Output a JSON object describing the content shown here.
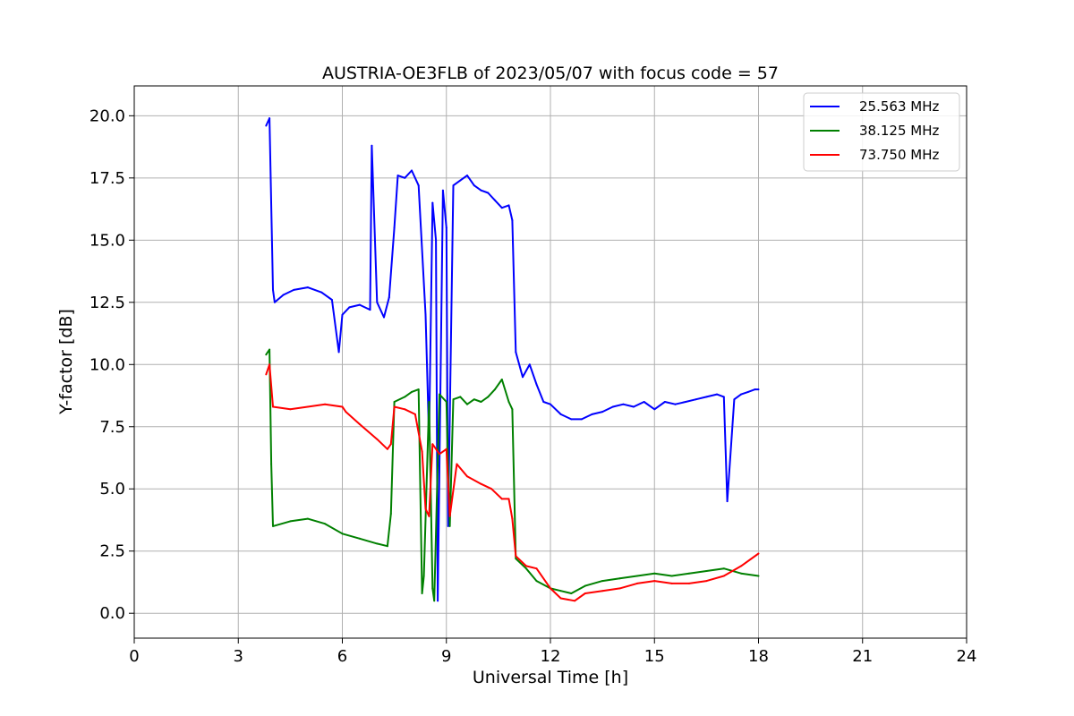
{
  "chart_data": {
    "type": "line",
    "title": "AUSTRIA-OE3FLB of 2023/05/07 with focus code = 57",
    "xlabel": "Universal Time [h]",
    "ylabel": "Y-factor [dB]",
    "xlim": [
      0,
      24
    ],
    "ylim": [
      -1,
      21.2
    ],
    "xticks": [
      0,
      3,
      6,
      9,
      12,
      15,
      18,
      21,
      24
    ],
    "xtick_labels": [
      "0",
      "3",
      "6",
      "9",
      "12",
      "15",
      "18",
      "21",
      "24"
    ],
    "yticks": [
      0,
      2.5,
      5,
      7.5,
      10,
      12.5,
      15,
      17.5,
      20
    ],
    "ytick_labels": [
      "0.0",
      "2.5",
      "5.0",
      "7.5",
      "10.0",
      "12.5",
      "15.0",
      "17.5",
      "20.0"
    ],
    "grid": true,
    "legend_position": "top-right",
    "series": [
      {
        "name": "25.563 MHz",
        "color": "#0000ff",
        "x": [
          3.8,
          3.9,
          4.0,
          4.05,
          4.3,
          4.6,
          5.0,
          5.4,
          5.7,
          5.9,
          6.0,
          6.2,
          6.5,
          6.8,
          6.85,
          7.0,
          7.2,
          7.35,
          7.5,
          7.6,
          7.8,
          8.0,
          8.2,
          8.4,
          8.5,
          8.6,
          8.7,
          8.75,
          8.9,
          9.0,
          9.05,
          9.2,
          9.4,
          9.6,
          9.8,
          10.0,
          10.2,
          10.4,
          10.6,
          10.8,
          10.9,
          11.0,
          11.2,
          11.4,
          11.6,
          11.8,
          12.0,
          12.3,
          12.6,
          12.9,
          13.2,
          13.5,
          13.8,
          14.1,
          14.4,
          14.7,
          15.0,
          15.3,
          15.6,
          15.9,
          16.2,
          16.5,
          16.8,
          17.0,
          17.1,
          17.3,
          17.5,
          17.7,
          17.9,
          18.0
        ],
        "values": [
          19.6,
          19.9,
          13.0,
          12.5,
          12.8,
          13.0,
          13.1,
          12.9,
          12.6,
          10.5,
          12.0,
          12.3,
          12.4,
          12.2,
          18.8,
          12.5,
          11.9,
          12.7,
          15.5,
          17.6,
          17.5,
          17.8,
          17.2,
          12.0,
          7.0,
          16.5,
          15.0,
          0.5,
          17.0,
          15.5,
          3.5,
          17.2,
          17.4,
          17.6,
          17.2,
          17.0,
          16.9,
          16.6,
          16.3,
          16.4,
          15.8,
          10.5,
          9.5,
          10.0,
          9.2,
          8.5,
          8.4,
          8.0,
          7.8,
          7.8,
          8.0,
          8.1,
          8.3,
          8.4,
          8.3,
          8.5,
          8.2,
          8.5,
          8.4,
          8.5,
          8.6,
          8.7,
          8.8,
          8.7,
          4.5,
          8.6,
          8.8,
          8.9,
          9.0,
          9.0
        ]
      },
      {
        "name": "38.125 MHz",
        "color": "#008000",
        "x": [
          3.8,
          3.9,
          3.95,
          4.0,
          4.5,
          5.0,
          5.5,
          6.0,
          6.5,
          7.0,
          7.3,
          7.4,
          7.5,
          7.8,
          8.0,
          8.2,
          8.3,
          8.35,
          8.5,
          8.6,
          8.65,
          8.8,
          9.0,
          9.1,
          9.2,
          9.4,
          9.6,
          9.8,
          10.0,
          10.2,
          10.4,
          10.6,
          10.8,
          10.9,
          11.0,
          11.3,
          11.6,
          12.0,
          12.3,
          12.6,
          13.0,
          13.5,
          14.0,
          14.5,
          15.0,
          15.5,
          16.0,
          16.5,
          17.0,
          17.5,
          18.0
        ],
        "values": [
          10.4,
          10.6,
          6.0,
          3.5,
          3.7,
          3.8,
          3.6,
          3.2,
          3.0,
          2.8,
          2.7,
          4.0,
          8.5,
          8.7,
          8.9,
          9.0,
          0.8,
          1.5,
          8.5,
          1.0,
          0.5,
          8.8,
          8.5,
          3.5,
          8.6,
          8.7,
          8.4,
          8.6,
          8.5,
          8.7,
          9.0,
          9.4,
          8.5,
          8.2,
          2.2,
          1.8,
          1.3,
          1.0,
          0.9,
          0.8,
          1.1,
          1.3,
          1.4,
          1.5,
          1.6,
          1.5,
          1.6,
          1.7,
          1.8,
          1.6,
          1.5
        ]
      },
      {
        "name": "73.750 MHz",
        "color": "#ff0000",
        "x": [
          3.8,
          3.9,
          4.0,
          4.5,
          5.0,
          5.5,
          6.0,
          6.1,
          6.5,
          7.0,
          7.3,
          7.4,
          7.5,
          7.8,
          8.1,
          8.3,
          8.4,
          8.5,
          8.6,
          8.8,
          9.0,
          9.1,
          9.3,
          9.6,
          10.0,
          10.3,
          10.6,
          10.8,
          10.9,
          11.0,
          11.3,
          11.6,
          12.0,
          12.3,
          12.7,
          13.0,
          13.5,
          14.0,
          14.5,
          15.0,
          15.5,
          16.0,
          16.5,
          17.0,
          17.5,
          18.0
        ],
        "values": [
          9.6,
          10.0,
          8.3,
          8.2,
          8.3,
          8.4,
          8.3,
          8.1,
          7.6,
          7.0,
          6.6,
          6.8,
          8.3,
          8.2,
          8.0,
          6.5,
          4.2,
          3.9,
          6.8,
          6.4,
          6.6,
          3.9,
          6.0,
          5.5,
          5.2,
          5.0,
          4.6,
          4.6,
          3.8,
          2.3,
          1.9,
          1.8,
          1.0,
          0.6,
          0.5,
          0.8,
          0.9,
          1.0,
          1.2,
          1.3,
          1.2,
          1.2,
          1.3,
          1.5,
          1.9,
          2.4
        ]
      }
    ]
  }
}
